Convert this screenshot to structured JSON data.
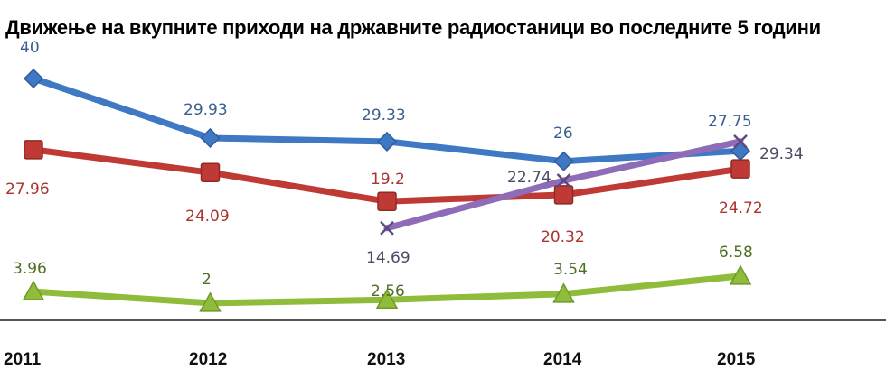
{
  "chart_data": {
    "type": "line",
    "title": "Движење на вкупните приходи на државните радиостаници во последните 5 години",
    "categories": [
      "2011",
      "2012",
      "2013",
      "2014",
      "2015"
    ],
    "ylim": [
      0,
      42
    ],
    "grid": false,
    "series": [
      {
        "color": "#3f78c3",
        "label_color": "#3a5f8f",
        "marker": "diamond",
        "values": [
          40,
          29.93,
          29.33,
          26,
          27.75
        ],
        "labels": [
          "40",
          "29.93",
          "29.33",
          "26",
          "27.75"
        ]
      },
      {
        "color": "#bf3a35",
        "label_color": "#a8352f",
        "marker": "square",
        "values": [
          27.96,
          24.09,
          19.2,
          20.32,
          24.72
        ],
        "labels": [
          "27.96",
          "24.09",
          "19.2",
          "20.32",
          "24.72"
        ]
      },
      {
        "color": "#8f6cb8",
        "label_color": "#4b4b66",
        "marker": "x",
        "values": [
          null,
          null,
          14.69,
          22.74,
          29.34
        ],
        "labels": [
          null,
          null,
          "14.69",
          "22.74",
          "29.34"
        ]
      },
      {
        "color": "#8fbc3a",
        "label_color": "#4e6e24",
        "marker": "triangle",
        "values": [
          3.96,
          2,
          2.56,
          3.54,
          6.58
        ],
        "labels": [
          "3.96",
          "2",
          "2.56",
          "3.54",
          "6.58"
        ]
      }
    ]
  }
}
